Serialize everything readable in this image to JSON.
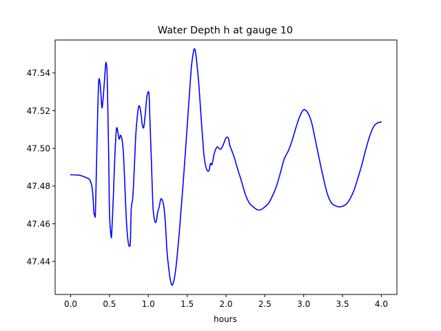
{
  "chart_data": {
    "type": "line",
    "title": "Water Depth h at gauge 10",
    "xlabel": "hours",
    "ylabel": "",
    "xlim": [
      -0.2,
      4.2
    ],
    "ylim": [
      47.4225,
      47.5575
    ],
    "x_ticks": [
      0.0,
      0.5,
      1.0,
      1.5,
      2.0,
      2.5,
      3.0,
      3.5,
      4.0
    ],
    "x_tick_labels": [
      "0.0",
      "0.5",
      "1.0",
      "1.5",
      "2.0",
      "2.5",
      "3.0",
      "3.5",
      "4.0"
    ],
    "y_ticks": [
      47.44,
      47.46,
      47.48,
      47.5,
      47.52,
      47.54
    ],
    "y_tick_labels": [
      "47.44",
      "47.46",
      "47.48",
      "47.50",
      "47.52",
      "47.54"
    ],
    "grid": false,
    "series": [
      {
        "color": "#0000ff",
        "x": [
          0.0,
          0.1,
          0.15,
          0.2,
          0.25,
          0.28,
          0.3,
          0.31,
          0.32,
          0.34,
          0.36,
          0.38,
          0.4,
          0.41,
          0.43,
          0.45,
          0.46,
          0.47,
          0.49,
          0.5,
          0.52,
          0.53,
          0.55,
          0.57,
          0.59,
          0.61,
          0.62,
          0.63,
          0.64,
          0.66,
          0.68,
          0.7,
          0.72,
          0.74,
          0.76,
          0.77,
          0.78,
          0.8,
          0.82,
          0.84,
          0.87,
          0.89,
          0.91,
          0.92,
          0.94,
          0.96,
          0.98,
          1.0,
          1.01,
          1.02,
          1.04,
          1.06,
          1.08,
          1.1,
          1.12,
          1.14,
          1.16,
          1.18,
          1.2,
          1.22,
          1.24,
          1.26,
          1.28,
          1.31,
          1.35,
          1.4,
          1.45,
          1.5,
          1.55,
          1.58,
          1.6,
          1.62,
          1.65,
          1.68,
          1.7,
          1.72,
          1.75,
          1.78,
          1.8,
          1.82,
          1.85,
          1.88,
          1.9,
          1.93,
          1.96,
          2.0,
          2.03,
          2.05,
          2.1,
          2.15,
          2.2,
          2.25,
          2.3,
          2.35,
          2.4,
          2.45,
          2.5,
          2.55,
          2.6,
          2.65,
          2.7,
          2.75,
          2.8,
          2.85,
          2.9,
          2.95,
          3.0,
          3.05,
          3.1,
          3.15,
          3.2,
          3.25,
          3.3,
          3.35,
          3.4,
          3.45,
          3.5,
          3.55,
          3.6,
          3.65,
          3.7,
          3.75,
          3.8,
          3.85,
          3.9,
          3.95,
          4.0
        ],
        "y": [
          47.486,
          47.4858,
          47.4853,
          47.4845,
          47.483,
          47.478,
          47.466,
          47.465,
          47.467,
          47.505,
          47.5345,
          47.534,
          47.5225,
          47.523,
          47.533,
          47.5445,
          47.5445,
          47.538,
          47.495,
          47.466,
          47.4535,
          47.456,
          47.475,
          47.497,
          47.5105,
          47.508,
          47.5055,
          47.505,
          47.507,
          47.505,
          47.497,
          47.478,
          47.46,
          47.4505,
          47.448,
          47.452,
          47.468,
          47.474,
          47.49,
          47.508,
          47.521,
          47.522,
          47.517,
          47.513,
          47.511,
          47.518,
          47.527,
          47.53,
          47.528,
          47.516,
          47.4925,
          47.469,
          47.462,
          47.461,
          47.466,
          47.469,
          47.473,
          47.4725,
          47.469,
          47.46,
          47.4455,
          47.4375,
          47.431,
          47.4275,
          47.435,
          47.456,
          47.4825,
          47.5115,
          47.541,
          47.551,
          47.5525,
          47.547,
          47.534,
          47.516,
          47.505,
          47.495,
          47.489,
          47.4882,
          47.492,
          47.4915,
          47.4975,
          47.5005,
          47.5005,
          47.4995,
          47.5015,
          47.5055,
          47.5055,
          47.5015,
          47.496,
          47.489,
          47.4825,
          47.4755,
          47.471,
          47.469,
          47.4675,
          47.4675,
          47.469,
          47.471,
          47.475,
          47.48,
          47.487,
          47.4945,
          47.4985,
          47.504,
          47.511,
          47.517,
          47.5205,
          47.519,
          47.514,
          47.5045,
          47.4945,
          47.485,
          47.4765,
          47.4715,
          47.4697,
          47.469,
          47.4693,
          47.4705,
          47.4735,
          47.478,
          47.4845,
          47.4915,
          47.4995,
          47.5065,
          47.5115,
          47.5135,
          47.514
        ]
      }
    ]
  }
}
